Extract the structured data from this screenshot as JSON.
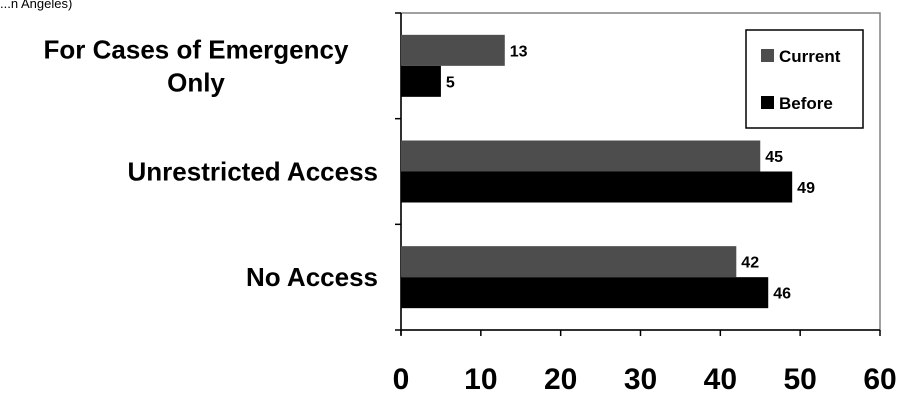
{
  "header_fragment": "...n Angeles)",
  "chart_data": {
    "type": "bar",
    "orientation": "horizontal",
    "categories": [
      "For Cases of Emergency Only",
      "Unrestricted Access",
      "No Access"
    ],
    "category_lines": [
      [
        "For Cases of Emergency",
        "Only"
      ],
      [
        "Unrestricted Access"
      ],
      [
        "No Access"
      ]
    ],
    "series": [
      {
        "name": "Current",
        "values": [
          13,
          45,
          42
        ],
        "color": "#4d4d4d"
      },
      {
        "name": "Before",
        "values": [
          5,
          49,
          46
        ],
        "color": "#000000"
      }
    ],
    "xlim": [
      0,
      60
    ],
    "xticks": [
      "0",
      "10",
      "20",
      "30",
      "40",
      "50",
      "60"
    ],
    "grid": false,
    "legend_position": "top-right"
  }
}
